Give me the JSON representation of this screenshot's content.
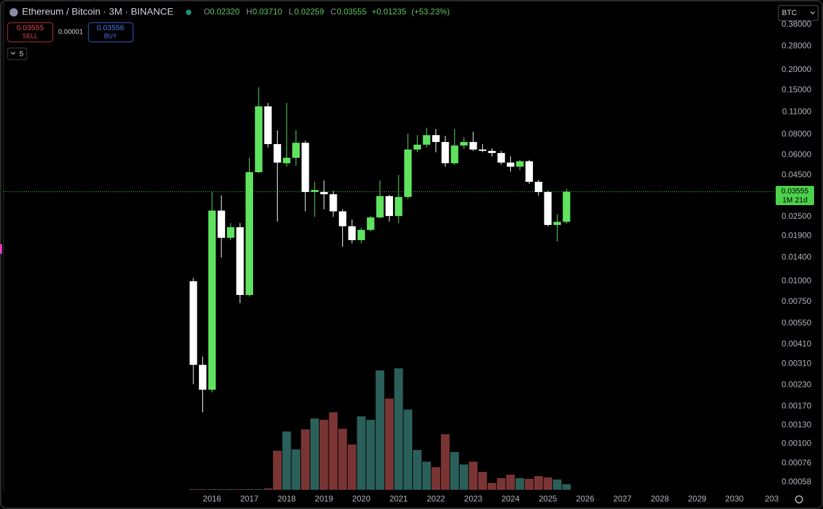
{
  "header": {
    "title": "Ethereum / Bitcoin · 3M · BINANCE",
    "open_label": "O",
    "open": "0.02320",
    "high_label": "H",
    "high": "0.03710",
    "low_label": "L",
    "low": "0.02259",
    "close_label": "C",
    "close": "0.03555",
    "change": "+0.01235",
    "change_pct": "(+53.23%)",
    "sell_price": "0.03555",
    "sell_label": "SELL",
    "spread": "0.00001",
    "buy_price": "0.03556",
    "buy_label": "BUY",
    "indicators": "5",
    "currency": "BTC",
    "price_tag": "0.03555",
    "countdown": "1M 21d"
  },
  "chart_data": {
    "type": "candlestick",
    "log_scale": true,
    "up_color": "#5fe35f",
    "down_color": "#ffffff",
    "volume_up_color": "#2b5f5a",
    "volume_down_color": "#7a3434",
    "last_price": 0.03555,
    "x": [
      2015.5,
      2015.75,
      2016,
      2016.25,
      2016.5,
      2016.75,
      2017,
      2017.25,
      2017.5,
      2017.75,
      2018,
      2018.25,
      2018.5,
      2018.75,
      2019,
      2019.25,
      2019.5,
      2019.75,
      2020,
      2020.25,
      2020.5,
      2020.75,
      2021,
      2021.25,
      2021.5,
      2021.75,
      2022,
      2022.25,
      2022.5,
      2022.75,
      2023,
      2023.25,
      2023.5,
      2023.75,
      2024,
      2024.25,
      2024.5,
      2024.75,
      2025,
      2025.25,
      2025.5
    ],
    "open": [
      0.01,
      0.00306,
      0.00215,
      0.0272,
      0.0185,
      0.0215,
      0.00823,
      0.0469,
      0.1191,
      0.0698,
      0.0532,
      0.0575,
      0.0711,
      0.0354,
      0.0354,
      0.0343,
      0.0269,
      0.0218,
      0.0179,
      0.0207,
      0.0247,
      0.0334,
      0.0252,
      0.033,
      0.0646,
      0.0692,
      0.0792,
      0.0719,
      0.0532,
      0.0684,
      0.0719,
      0.0646,
      0.0634,
      0.0615,
      0.0537,
      0.0507,
      0.0547,
      0.0409,
      0.0354,
      0.0222,
      0.0232
    ],
    "high": [
      0.0105,
      0.00344,
      0.0354,
      0.0337,
      0.0228,
      0.0228,
      0.0575,
      0.156,
      0.125,
      0.0848,
      0.125,
      0.0848,
      0.0733,
      0.0409,
      0.0417,
      0.036,
      0.0277,
      0.024,
      0.0213,
      0.0252,
      0.0417,
      0.034,
      0.0451,
      0.0808,
      0.0792,
      0.0881,
      0.0865,
      0.0785,
      0.0865,
      0.0769,
      0.0832,
      0.0698,
      0.0659,
      0.0634,
      0.0586,
      0.0558,
      0.0558,
      0.0421,
      0.036,
      0.0259,
      0.0371
    ],
    "low": [
      0.00233,
      0.00156,
      0.00207,
      0.014,
      0.0179,
      0.00733,
      0.00808,
      0.0464,
      0.0665,
      0.0233,
      0.0507,
      0.0512,
      0.0269,
      0.0249,
      0.0277,
      0.0249,
      0.0163,
      0.0171,
      0.0171,
      0.0203,
      0.0244,
      0.0233,
      0.0228,
      0.0321,
      0.0621,
      0.0665,
      0.0621,
      0.0507,
      0.0521,
      0.0652,
      0.0634,
      0.0621,
      0.0586,
      0.0521,
      0.0473,
      0.0483,
      0.0397,
      0.0337,
      0.0218,
      0.0176,
      0.02259
    ],
    "close": [
      0.00306,
      0.00215,
      0.0272,
      0.0185,
      0.0215,
      0.00823,
      0.0469,
      0.1191,
      0.0698,
      0.0537,
      0.0575,
      0.0711,
      0.0354,
      0.0364,
      0.0343,
      0.0269,
      0.0218,
      0.0179,
      0.0207,
      0.0247,
      0.0334,
      0.0252,
      0.033,
      0.0646,
      0.0692,
      0.0792,
      0.0719,
      0.0532,
      0.0684,
      0.0719,
      0.0646,
      0.0634,
      0.0615,
      0.0537,
      0.0507,
      0.0547,
      0.0409,
      0.0354,
      0.0222,
      0.0232,
      0.03555
    ],
    "volume": [
      1,
      1,
      1,
      1,
      1,
      1,
      1,
      1,
      2,
      57,
      85,
      59,
      88,
      104,
      102,
      113,
      89,
      66,
      107,
      102,
      174,
      133,
      177,
      117,
      58,
      41,
      33,
      81,
      55,
      37,
      41,
      26,
      10,
      17,
      22,
      17,
      16,
      20,
      18,
      15,
      8
    ],
    "xlim": [
      2010.41,
      2031.05
    ],
    "xticks": [
      2016,
      2017,
      2018,
      2019,
      2020,
      2021,
      2022,
      2023,
      2024,
      2025,
      2026,
      2027,
      2028,
      2029,
      2030,
      {
        "value": 2031,
        "label": "203"
      }
    ],
    "ylim": [
      0.000516,
      0.512
    ],
    "yticks": [
      {
        "value": 0.38,
        "label": "0.38000"
      },
      {
        "value": 0.28,
        "label": "0.28000"
      },
      {
        "value": 0.2,
        "label": "0.20000"
      },
      {
        "value": 0.15,
        "label": "0.15000"
      },
      {
        "value": 0.11,
        "label": "0.11000"
      },
      {
        "value": 0.08,
        "label": "0.08000"
      },
      {
        "value": 0.06,
        "label": "0.06000"
      },
      {
        "value": 0.045,
        "label": "0.04500"
      },
      {
        "value": 0.025,
        "label": "0.02500"
      },
      {
        "value": 0.019,
        "label": "0.01900"
      },
      {
        "value": 0.014,
        "label": "0.01400"
      },
      {
        "value": 0.01,
        "label": "0.01000"
      },
      {
        "value": 0.0075,
        "label": "0.00750"
      },
      {
        "value": 0.0055,
        "label": "0.00550"
      },
      {
        "value": 0.0041,
        "label": "0.00410"
      },
      {
        "value": 0.0031,
        "label": "0.00310"
      },
      {
        "value": 0.0023,
        "label": "0.00230"
      },
      {
        "value": 0.0017,
        "label": "0.00170"
      },
      {
        "value": 0.0013,
        "label": "0.00130"
      },
      {
        "value": 0.001,
        "label": "0.00100"
      },
      {
        "value": 0.00076,
        "label": "0.00076"
      },
      {
        "value": 0.00058,
        "label": "0.00058"
      }
    ]
  }
}
